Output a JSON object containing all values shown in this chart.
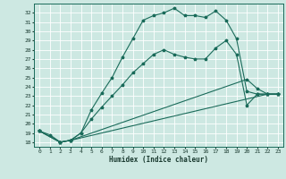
{
  "xlabel": "Humidex (Indice chaleur)",
  "background_color": "#cde8e2",
  "grid_color": "#b0d8d0",
  "line_color": "#1a6b5a",
  "xlim": [
    -0.5,
    23.5
  ],
  "ylim": [
    17.5,
    33.0
  ],
  "yticks": [
    18,
    19,
    20,
    21,
    22,
    23,
    24,
    25,
    26,
    27,
    28,
    29,
    30,
    31,
    32
  ],
  "xticks": [
    0,
    1,
    2,
    3,
    4,
    5,
    6,
    7,
    8,
    9,
    10,
    11,
    12,
    13,
    14,
    15,
    16,
    17,
    18,
    19,
    20,
    21,
    22,
    23
  ],
  "line1_x": [
    0,
    1,
    2,
    3,
    4,
    5,
    6,
    7,
    8,
    9,
    10,
    11,
    12,
    13,
    14,
    15,
    16,
    17,
    18,
    19,
    20,
    21,
    22,
    23
  ],
  "line1_y": [
    19.2,
    18.8,
    18.0,
    18.2,
    19.0,
    21.5,
    23.3,
    25.0,
    27.2,
    29.2,
    31.2,
    31.7,
    32.0,
    32.5,
    31.7,
    31.7,
    31.5,
    32.2,
    31.2,
    29.2,
    23.5,
    23.2,
    23.2,
    23.2
  ],
  "line2_x": [
    0,
    2,
    3,
    4,
    5,
    6,
    7,
    8,
    9,
    10,
    11,
    12,
    13,
    14,
    15,
    16,
    17,
    18,
    19,
    20,
    21,
    22,
    23
  ],
  "line2_y": [
    19.2,
    18.0,
    18.2,
    19.0,
    20.5,
    21.8,
    23.0,
    24.2,
    25.5,
    26.5,
    27.5,
    28.0,
    27.5,
    27.2,
    27.0,
    27.0,
    28.2,
    29.0,
    27.5,
    22.0,
    23.2,
    23.2,
    23.2
  ],
  "line3_x": [
    0,
    2,
    3,
    20,
    21,
    22,
    23
  ],
  "line3_y": [
    19.2,
    18.0,
    18.2,
    24.8,
    23.8,
    23.2,
    23.2
  ],
  "line4_x": [
    0,
    2,
    3,
    22,
    23
  ],
  "line4_y": [
    19.2,
    18.0,
    18.2,
    23.2,
    23.2
  ]
}
